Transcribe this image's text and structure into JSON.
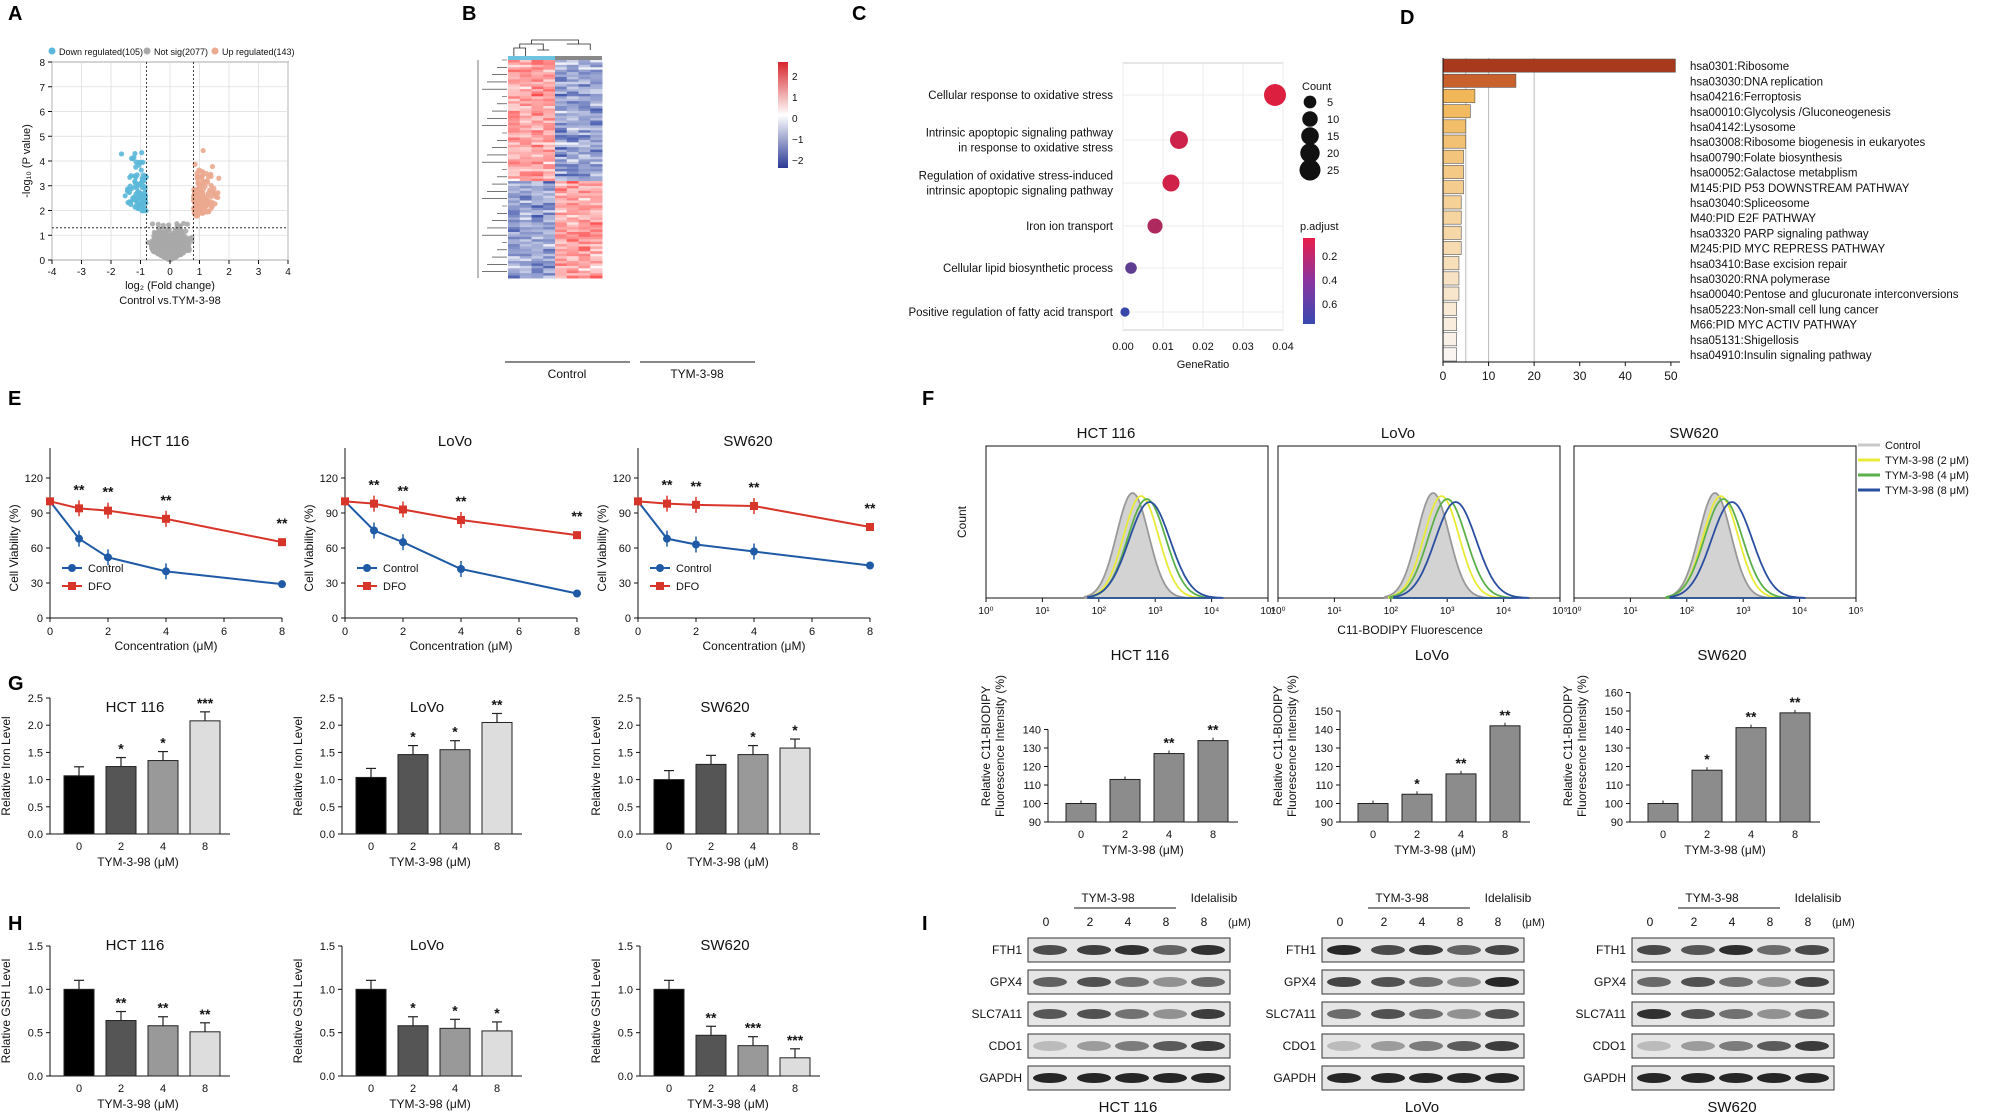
{
  "panels": {
    "A": "A",
    "B": "B",
    "C": "C",
    "D": "D",
    "E": "E",
    "F": "F",
    "G": "G",
    "H": "H",
    "I": "I"
  },
  "volcano": {
    "legend": [
      "Down regulated(105)",
      "Not sig(2077)",
      "Up regulated(143)"
    ],
    "colors": {
      "down": "#5bb8d8",
      "ns": "#a9a9a9",
      "up": "#eba98f"
    },
    "xlabel": "log₂ (Fold change)",
    "ylabel": "-log₁₀ (P value)",
    "caption": "Control vs.TYM-3-98",
    "xticks": [
      "-4",
      "-3",
      "-2",
      "-1",
      "0",
      "1",
      "2",
      "3",
      "4"
    ],
    "yticks": [
      "0",
      "1",
      "2",
      "3",
      "4",
      "5",
      "6",
      "7",
      "8"
    ]
  },
  "heatmap": {
    "groups": [
      "Control",
      "TYM-3-98"
    ],
    "scale": [
      "2",
      "1",
      "0",
      "−1",
      "−2"
    ]
  },
  "go": {
    "terms": [
      "Cellular response to oxidative stress",
      "Intrinsic apoptopic signaling pathway|in response to oxidative stress",
      "Regulation of oxidative stress-induced|intrinsic apoptopic signaling pathway",
      "Iron ion transport",
      "Cellular lipid biosynthetic process",
      "Positive regulation of fatty acid transport"
    ],
    "gene_ratio": [
      0.038,
      0.014,
      0.012,
      0.008,
      0.002,
      0.0005
    ],
    "count": [
      25,
      14,
      12,
      8,
      3,
      1
    ],
    "p_adjust": [
      0.02,
      0.08,
      0.07,
      0.2,
      0.5,
      0.65
    ],
    "xlabel": "GeneRatio",
    "xticks": [
      "0.00",
      "0.01",
      "0.02",
      "0.03",
      "0.04"
    ],
    "count_title": "Count",
    "count_legend": [
      "5",
      "10",
      "15",
      "20",
      "25"
    ],
    "padj_title": "p.adjust",
    "padj_ticks": [
      "0.2",
      "0.4",
      "0.6"
    ]
  },
  "kegg": {
    "terms": [
      "hsa0301:Ribosome",
      "hsa03030:DNA replication",
      "hsa04216:Ferroptosis",
      "hsa00010:Glycolysis /Gluconeogenesis",
      "hsa04142:Lysosome",
      "hsa03008:Ribosome biogenesis in eukaryotes",
      "hsa00790:Folate biosynthesis",
      "hsa00052:Galactose metabplism",
      "M145:PID P53 DOWNSTREAM PATHWAY",
      "hsa03040:Spliceosome",
      "M40:PID E2F PATHWAY",
      "hsa03320 PARP signaling pathway",
      "M245:PID MYC REPRESS PATHWAY",
      "hsa03410:Base excision repair",
      "hsa03020:RNA polymerase",
      "hsa00040:Pentose and glucuronate interconversions",
      "hsa05223:Non-small cell lung cancer",
      "M66:PID MYC ACTIV PATHWAY",
      "hsa05131:Shigellosis",
      "hsa04910:Insulin signaling pathway"
    ],
    "values": [
      51,
      16,
      7,
      6,
      5,
      5,
      4.5,
      4.5,
      4.5,
      4,
      4,
      4,
      4,
      3.5,
      3.5,
      3.5,
      3,
      3,
      3,
      3
    ],
    "xticks": [
      "0",
      "10",
      "20",
      "30",
      "40",
      "50"
    ]
  },
  "viability": {
    "ylabel": "Cell Viability (%)",
    "xlabel": "Concentration (μM)",
    "xticks": [
      "0",
      "2",
      "4",
      "6",
      "8"
    ],
    "yticks": [
      "0",
      "30",
      "60",
      "90",
      "120"
    ],
    "legend": [
      "Control",
      "DFO"
    ],
    "colors": {
      "control": "#1f5aa6",
      "dfo": "#d8352a"
    },
    "stars": [
      "**",
      "**",
      "**",
      "**"
    ],
    "cells": [
      {
        "name": "HCT 116",
        "x": [
          0,
          1,
          2,
          4,
          8
        ],
        "control": [
          100,
          68,
          52,
          40,
          29
        ],
        "dfo": [
          100,
          94,
          92,
          85,
          65
        ]
      },
      {
        "name": "LoVo",
        "x": [
          0,
          1,
          2,
          4,
          8
        ],
        "control": [
          100,
          75,
          65,
          42,
          21
        ],
        "dfo": [
          100,
          98,
          93,
          84,
          71
        ]
      },
      {
        "name": "SW620",
        "x": [
          0,
          1,
          2,
          4,
          8
        ],
        "control": [
          100,
          68,
          63,
          57,
          45
        ],
        "dfo": [
          100,
          98,
          97,
          96,
          78
        ]
      }
    ]
  },
  "flow": {
    "xlabel": "C11-BODIPY Fluorescence",
    "ylabel": "Count",
    "ticks": [
      "10⁰",
      "10¹",
      "10²",
      "10³",
      "10⁴",
      "10⁵"
    ],
    "legend": [
      "Control",
      "TYM-3-98 (2 μM)",
      "TYM-3-98 (4 μM)",
      "TYM-3-98 (8 μM)"
    ],
    "cells": [
      "HCT 116",
      "LoVo",
      "SW620"
    ]
  },
  "bodipy": {
    "ylabel1": "Relative C11-BIODIPY",
    "ylabel2": "Fluorescence Intensity (%)",
    "xlabel": "TYM-3-98 (μM)",
    "categories": [
      "0",
      "2",
      "4",
      "8"
    ],
    "cells": [
      {
        "name": "HCT 116",
        "values": [
          100,
          113,
          127,
          134
        ],
        "stars": [
          "",
          "",
          "**",
          "**"
        ],
        "yticks": [
          "90",
          "100",
          "110",
          "120",
          "130",
          "140"
        ],
        "ylim": [
          90,
          140
        ]
      },
      {
        "name": "LoVo",
        "values": [
          100,
          105,
          116,
          142
        ],
        "stars": [
          "",
          "*",
          "**",
          "**"
        ],
        "yticks": [
          "90",
          "100",
          "110",
          "120",
          "130",
          "140",
          "150"
        ],
        "ylim": [
          90,
          150
        ]
      },
      {
        "name": "SW620",
        "values": [
          100,
          118,
          141,
          149
        ],
        "stars": [
          "",
          "*",
          "**",
          "**"
        ],
        "yticks": [
          "90",
          "100",
          "110",
          "120",
          "130",
          "140",
          "150",
          "160"
        ],
        "ylim": [
          90,
          160
        ]
      }
    ]
  },
  "iron": {
    "ylabel": "Relative Iron Level",
    "xlabel": "TYM-3-98 (μM)",
    "categories": [
      "0",
      "2",
      "4",
      "8"
    ],
    "yticks": [
      "0.0",
      "0.5",
      "1.0",
      "1.5",
      "2.0",
      "2.5"
    ],
    "cells": [
      {
        "name": "HCT 116",
        "values": [
          1.07,
          1.24,
          1.35,
          2.08
        ],
        "stars": [
          "",
          "*",
          "*",
          "***"
        ]
      },
      {
        "name": "LoVo",
        "values": [
          1.04,
          1.46,
          1.55,
          2.05
        ],
        "stars": [
          "",
          "*",
          "*",
          "**"
        ]
      },
      {
        "name": "SW620",
        "values": [
          1.0,
          1.28,
          1.46,
          1.58
        ],
        "stars": [
          "",
          "",
          "*",
          "*"
        ]
      }
    ]
  },
  "gsh": {
    "ylabel": "Relative GSH Level",
    "xlabel": "TYM-3-98 (μM)",
    "categories": [
      "0",
      "2",
      "4",
      "8"
    ],
    "yticks": [
      "0.0",
      "0.5",
      "1.0",
      "1.5"
    ],
    "cells": [
      {
        "name": "HCT 116",
        "values": [
          1.0,
          0.64,
          0.58,
          0.51
        ],
        "stars": [
          "",
          "**",
          "**",
          "**"
        ]
      },
      {
        "name": "LoVo",
        "values": [
          1.0,
          0.58,
          0.55,
          0.52
        ],
        "stars": [
          "",
          "*",
          "*",
          "*"
        ]
      },
      {
        "name": "SW620",
        "values": [
          1.0,
          0.47,
          0.35,
          0.21
        ],
        "stars": [
          "",
          "**",
          "***",
          "***"
        ]
      }
    ]
  },
  "blot": {
    "header_lanes": [
      "0",
      "2",
      "4",
      "8",
      "8"
    ],
    "unit": "(μM)",
    "treatment": "TYM-3-98",
    "inhibitor": "Idelalisib",
    "proteins": [
      "FTH1",
      "GPX4",
      "SLC7A11",
      "CDO1",
      "GAPDH"
    ],
    "cells": [
      "HCT 116",
      "LoVo",
      "SW620"
    ]
  }
}
